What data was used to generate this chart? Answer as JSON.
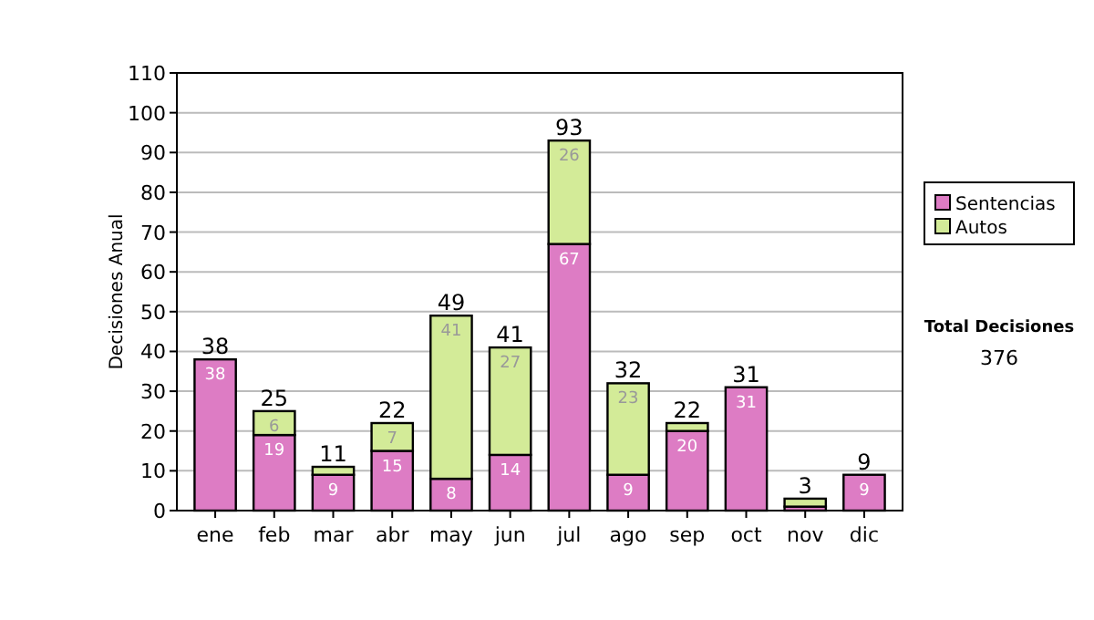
{
  "chart_data": {
    "type": "bar",
    "stacked": true,
    "ylabel": "Decisiones Anual",
    "categories": [
      "ene",
      "feb",
      "mar",
      "abr",
      "may",
      "jun",
      "jul",
      "ago",
      "sep",
      "oct",
      "nov",
      "dic"
    ],
    "series": [
      {
        "name": "Sentencias",
        "color": "#dd7cc4",
        "values": [
          38,
          19,
          9,
          15,
          8,
          14,
          67,
          9,
          20,
          31,
          1,
          9
        ],
        "value_labels": [
          "38",
          "19",
          "9",
          "15",
          "8",
          "14",
          "67",
          "9",
          "20",
          "31",
          null,
          "9"
        ]
      },
      {
        "name": "Autos",
        "color": "#d3eb98",
        "values": [
          0,
          6,
          2,
          7,
          41,
          27,
          26,
          23,
          2,
          0,
          2,
          0
        ],
        "value_labels": [
          null,
          "6",
          null,
          "7",
          "41",
          "27",
          "26",
          "23",
          null,
          null,
          null,
          null
        ]
      }
    ],
    "totals": [
      "38",
      "25",
      "11",
      "22",
      "49",
      "41",
      "93",
      "32",
      "22",
      "31",
      "3",
      "9"
    ],
    "ylim": [
      0,
      110
    ],
    "yticks": [
      0,
      10,
      20,
      30,
      40,
      50,
      60,
      70,
      80,
      90,
      100,
      110
    ],
    "grid": "y",
    "legend": "right",
    "annotations": [
      "Total Decisiones",
      "376"
    ]
  }
}
